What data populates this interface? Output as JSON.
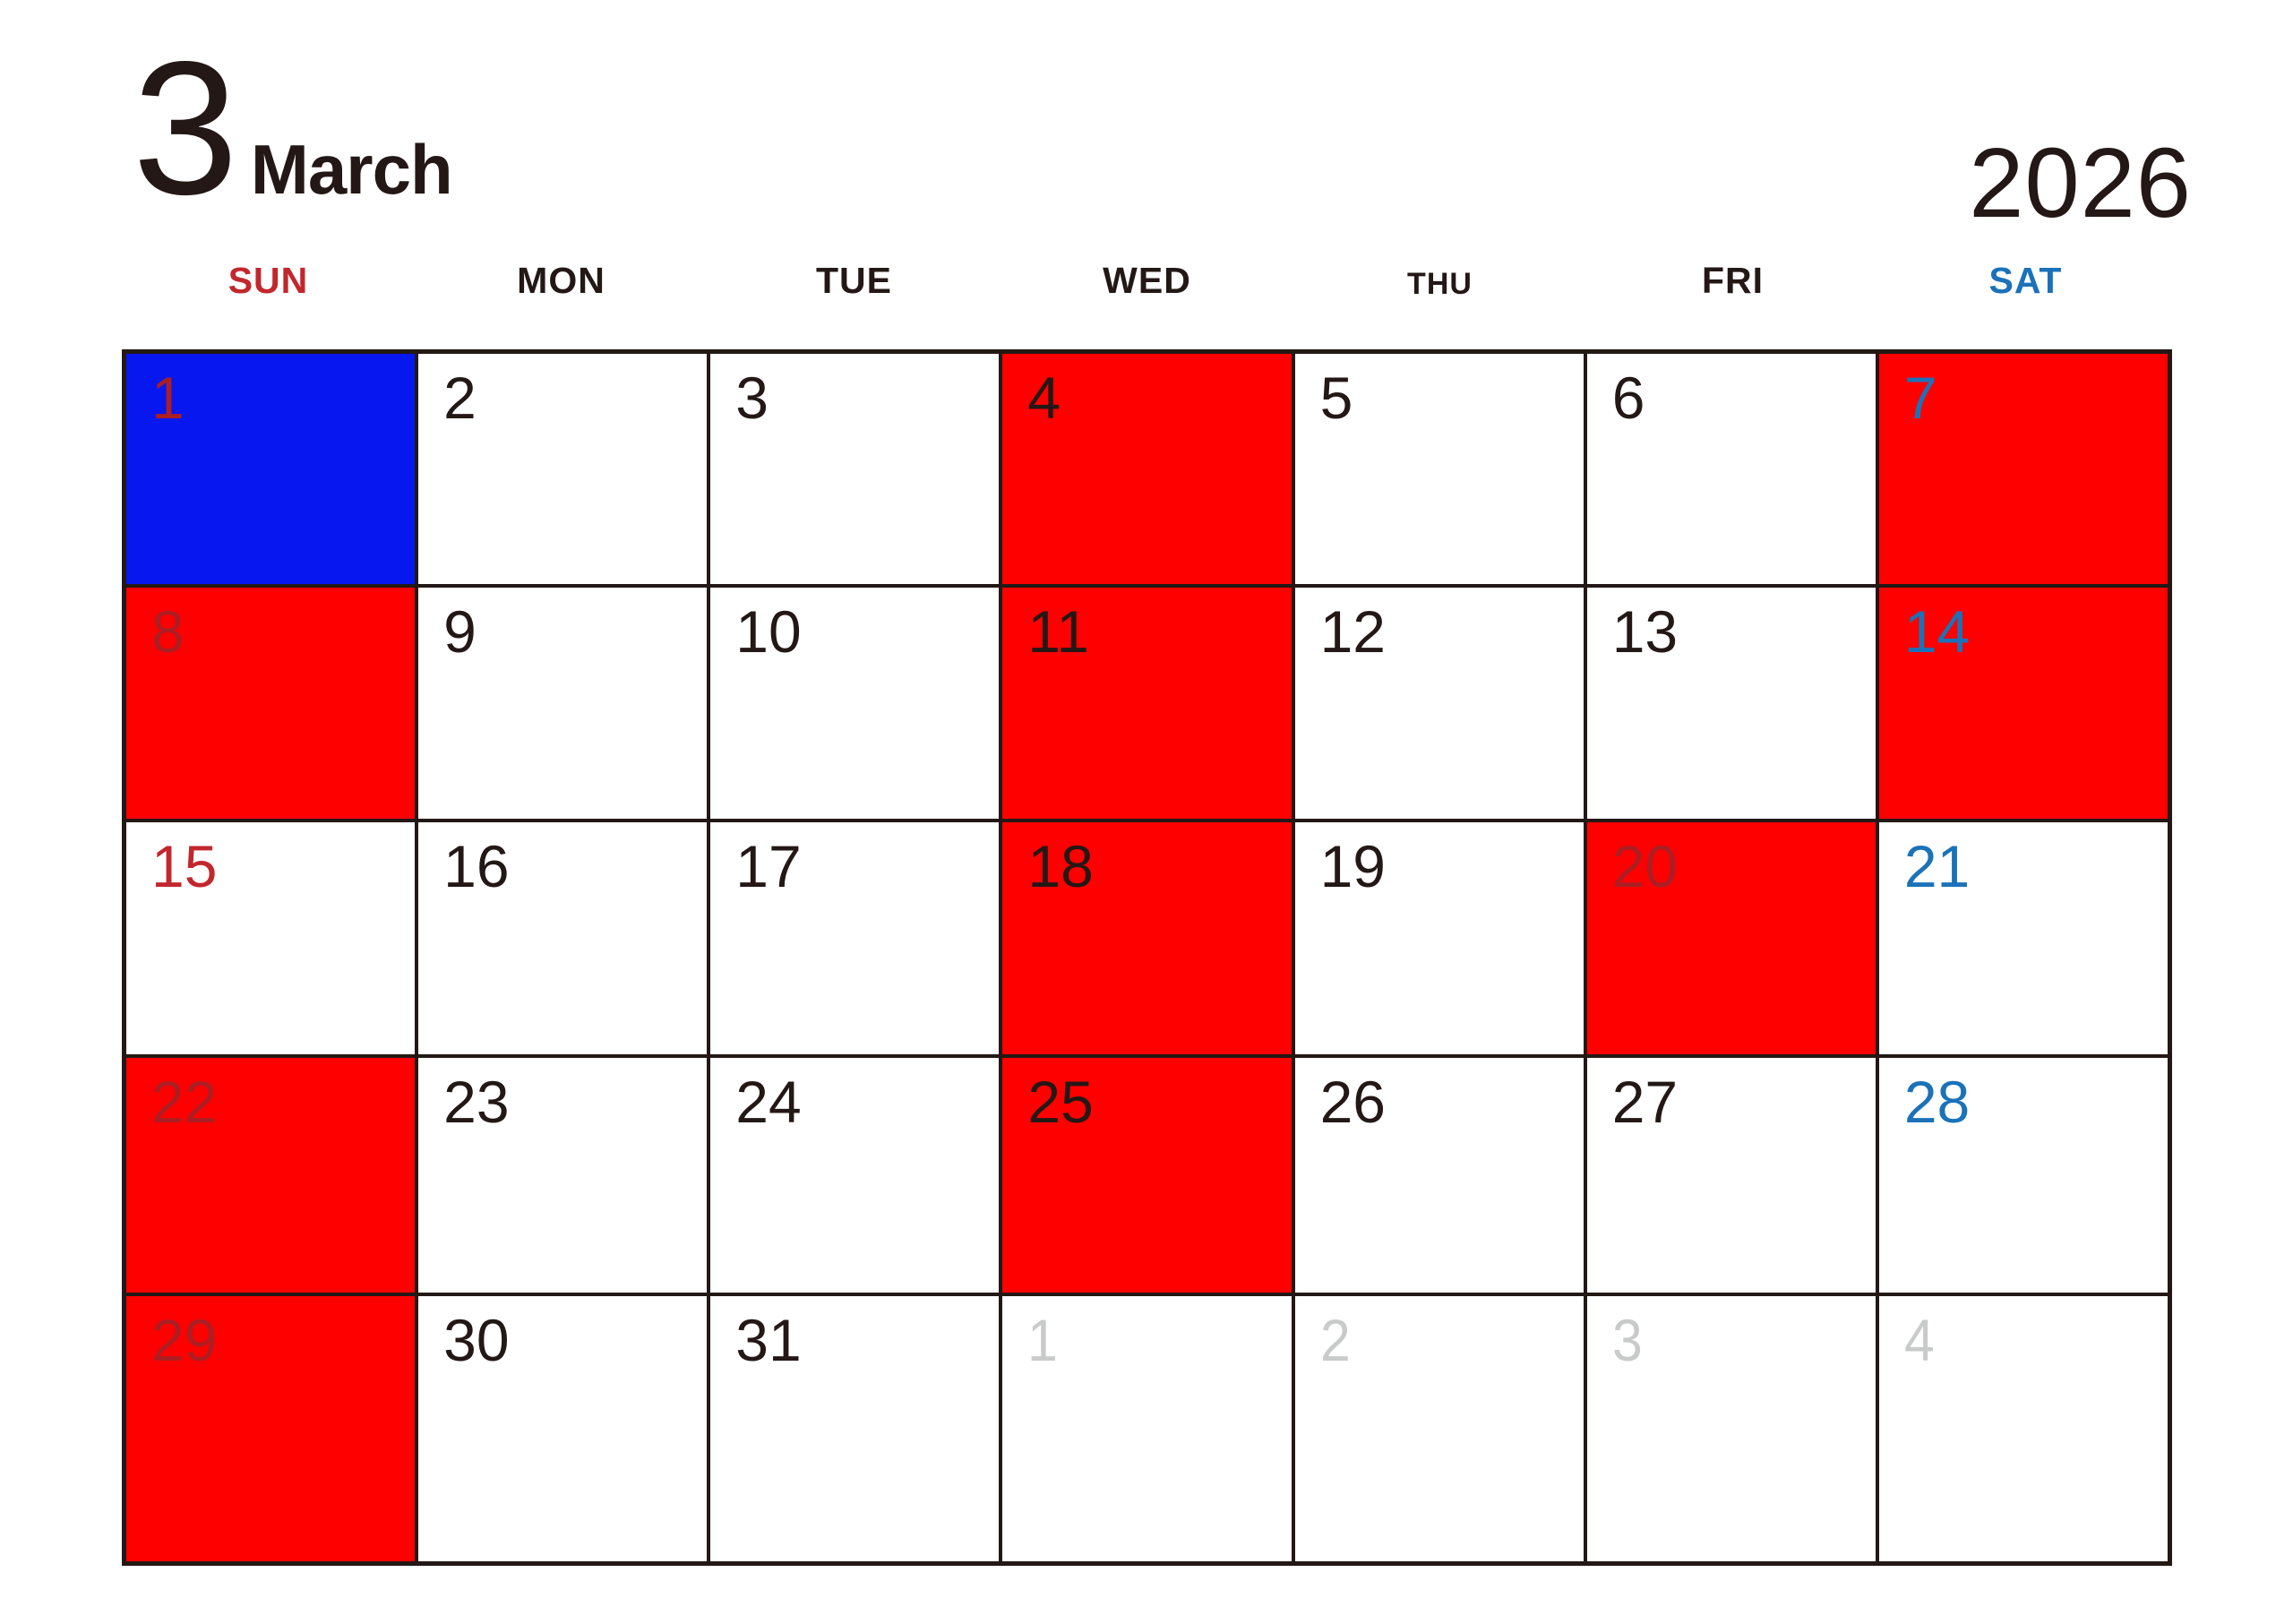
{
  "header": {
    "month_number": "3",
    "month_name": "March",
    "year": "2026"
  },
  "colors": {
    "page_bg": "#FFFFFF",
    "grid_line": "#231815",
    "holiday_bg": "#FF0000",
    "special_bg": "#0617F0",
    "sunday_text": "#C2272D",
    "saturday_text": "#1B72B9",
    "weekday_text": "#231815",
    "holiday_text_on_bg": "#AC1E23",
    "adjacent_month_text": "#C9CACA"
  },
  "weekday_row": [
    {
      "label": "SUN",
      "color": "#C2272D",
      "small": false
    },
    {
      "label": "MON",
      "color": "#231815",
      "small": false
    },
    {
      "label": "TUE",
      "color": "#231815",
      "small": false
    },
    {
      "label": "WED",
      "color": "#231815",
      "small": false
    },
    {
      "label": "THU",
      "color": "#231815",
      "small": true
    },
    {
      "label": "FRI",
      "color": "#231815",
      "small": false
    },
    {
      "label": "SAT",
      "color": "#1B72B9",
      "small": false
    }
  ],
  "weeks": [
    [
      {
        "day": "1",
        "bg": "special",
        "text": "holiday_on_bg",
        "adjacent": false
      },
      {
        "day": "2",
        "bg": "none",
        "text": "black",
        "adjacent": false
      },
      {
        "day": "3",
        "bg": "none",
        "text": "black",
        "adjacent": false
      },
      {
        "day": "4",
        "bg": "holiday",
        "text": "black",
        "adjacent": false
      },
      {
        "day": "5",
        "bg": "none",
        "text": "black",
        "adjacent": false
      },
      {
        "day": "6",
        "bg": "none",
        "text": "black",
        "adjacent": false
      },
      {
        "day": "7",
        "bg": "holiday",
        "text": "saturday",
        "adjacent": false
      }
    ],
    [
      {
        "day": "8",
        "bg": "holiday",
        "text": "holiday_on_bg",
        "adjacent": false
      },
      {
        "day": "9",
        "bg": "none",
        "text": "black",
        "adjacent": false
      },
      {
        "day": "10",
        "bg": "none",
        "text": "black",
        "adjacent": false
      },
      {
        "day": "11",
        "bg": "holiday",
        "text": "black",
        "adjacent": false
      },
      {
        "day": "12",
        "bg": "none",
        "text": "black",
        "adjacent": false
      },
      {
        "day": "13",
        "bg": "none",
        "text": "black",
        "adjacent": false
      },
      {
        "day": "14",
        "bg": "holiday",
        "text": "saturday",
        "adjacent": false
      }
    ],
    [
      {
        "day": "15",
        "bg": "none",
        "text": "sunday",
        "adjacent": false
      },
      {
        "day": "16",
        "bg": "none",
        "text": "black",
        "adjacent": false
      },
      {
        "day": "17",
        "bg": "none",
        "text": "black",
        "adjacent": false
      },
      {
        "day": "18",
        "bg": "holiday",
        "text": "black",
        "adjacent": false
      },
      {
        "day": "19",
        "bg": "none",
        "text": "black",
        "adjacent": false
      },
      {
        "day": "20",
        "bg": "holiday",
        "text": "holiday_on_bg",
        "adjacent": false
      },
      {
        "day": "21",
        "bg": "none",
        "text": "saturday",
        "adjacent": false
      }
    ],
    [
      {
        "day": "22",
        "bg": "holiday",
        "text": "holiday_on_bg",
        "adjacent": false
      },
      {
        "day": "23",
        "bg": "none",
        "text": "black",
        "adjacent": false
      },
      {
        "day": "24",
        "bg": "none",
        "text": "black",
        "adjacent": false
      },
      {
        "day": "25",
        "bg": "holiday",
        "text": "black",
        "adjacent": false
      },
      {
        "day": "26",
        "bg": "none",
        "text": "black",
        "adjacent": false
      },
      {
        "day": "27",
        "bg": "none",
        "text": "black",
        "adjacent": false
      },
      {
        "day": "28",
        "bg": "none",
        "text": "saturday",
        "adjacent": false
      }
    ],
    [
      {
        "day": "29",
        "bg": "holiday",
        "text": "holiday_on_bg",
        "adjacent": false
      },
      {
        "day": "30",
        "bg": "none",
        "text": "black",
        "adjacent": false
      },
      {
        "day": "31",
        "bg": "none",
        "text": "black",
        "adjacent": false
      },
      {
        "day": "1",
        "bg": "none",
        "text": "adjacent",
        "adjacent": true
      },
      {
        "day": "2",
        "bg": "none",
        "text": "adjacent",
        "adjacent": true
      },
      {
        "day": "3",
        "bg": "none",
        "text": "adjacent",
        "adjacent": true
      },
      {
        "day": "4",
        "bg": "none",
        "text": "adjacent",
        "adjacent": true
      }
    ]
  ]
}
